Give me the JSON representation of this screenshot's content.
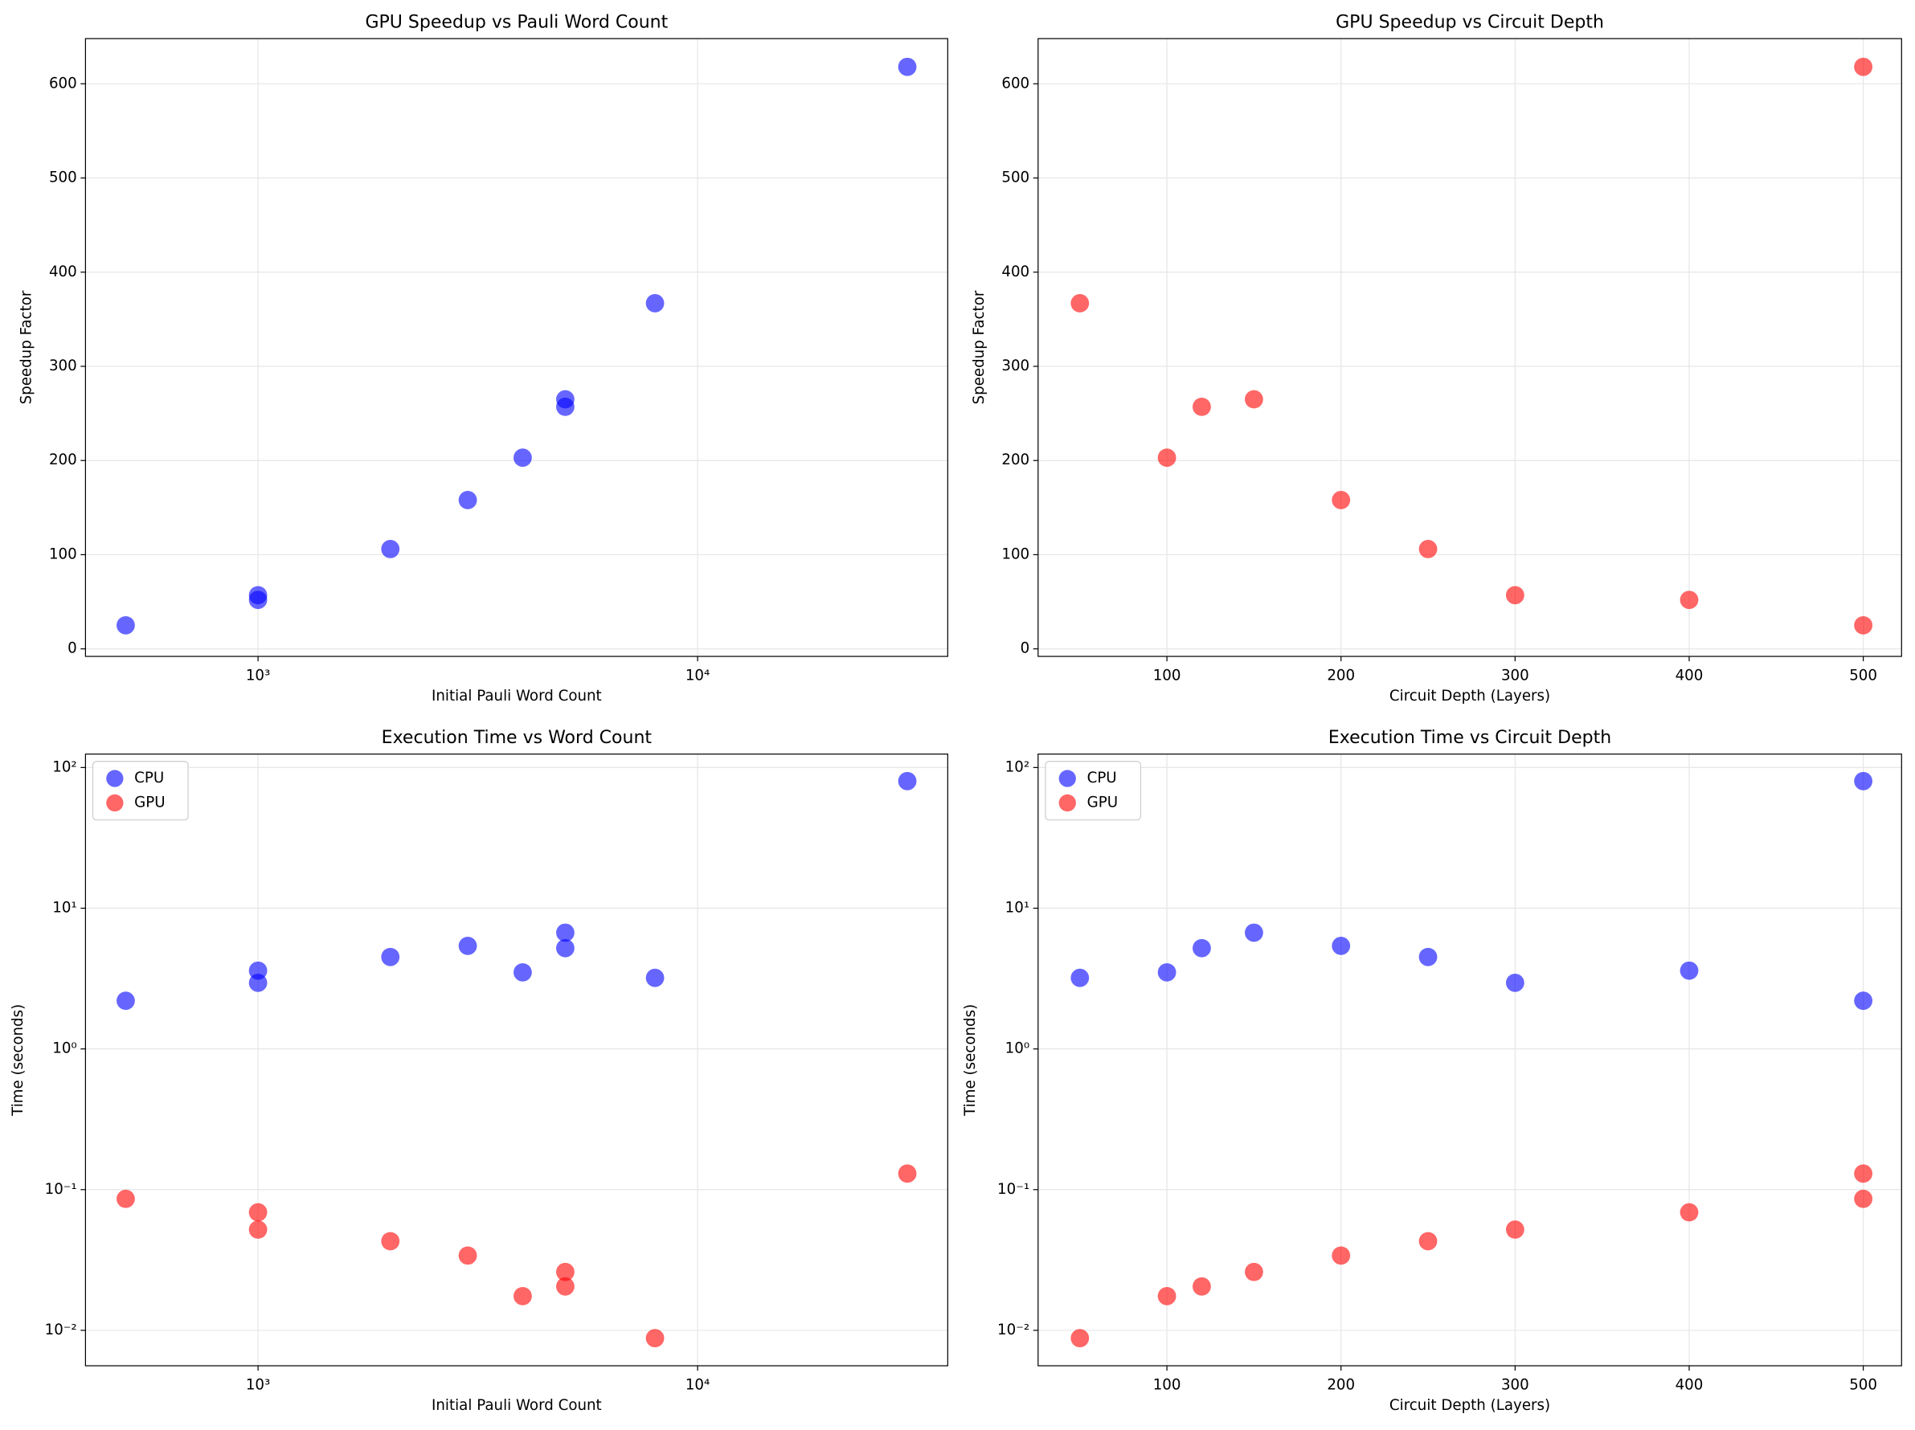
{
  "chart_data": [
    {
      "type": "scatter",
      "title": "GPU Speedup vs Pauli Word Count",
      "xlabel": "Initial Pauli Word Count",
      "ylabel": "Speedup Factor",
      "x": [
        8000,
        4000,
        5000,
        5000,
        3000,
        2000,
        1000,
        1000,
        500,
        30000
      ],
      "values": [
        367,
        203,
        257,
        265,
        158,
        106,
        57,
        52,
        25,
        618
      ],
      "color": "blue",
      "xscale": "log",
      "yscale": "linear",
      "xlim": [
        405,
        37070
      ],
      "ylim": [
        -8,
        648
      ],
      "xticks": [
        {
          "value": 1000,
          "label": "10³"
        },
        {
          "value": 10000,
          "label": "10⁴"
        }
      ],
      "yticks": [
        0,
        100,
        200,
        300,
        400,
        500,
        600
      ],
      "grid": true
    },
    {
      "type": "scatter",
      "title": "GPU Speedup vs Circuit Depth",
      "xlabel": "Circuit Depth (Layers)",
      "ylabel": "Speedup Factor",
      "x": [
        50,
        100,
        120,
        150,
        200,
        250,
        300,
        400,
        500,
        500
      ],
      "values": [
        367,
        203,
        257,
        265,
        158,
        106,
        57,
        52,
        25,
        618
      ],
      "color": "red",
      "xscale": "linear",
      "yscale": "linear",
      "xlim": [
        26,
        522
      ],
      "ylim": [
        -8,
        648
      ],
      "xticks": [
        100,
        200,
        300,
        400,
        500
      ],
      "yticks": [
        0,
        100,
        200,
        300,
        400,
        500,
        600
      ],
      "grid": true
    },
    {
      "type": "scatter",
      "title": "Execution Time vs Word Count",
      "xlabel": "Initial Pauli Word Count",
      "ylabel": "Time (seconds)",
      "x": [
        8000,
        4000,
        5000,
        5000,
        3000,
        2000,
        1000,
        1000,
        500,
        30000
      ],
      "series": [
        {
          "name": "CPU",
          "color": "blue",
          "values": [
            3.2,
            3.5,
            5.2,
            6.7,
            5.4,
            4.5,
            2.95,
            3.6,
            2.2,
            80
          ]
        },
        {
          "name": "GPU",
          "color": "red",
          "values": [
            0.0088,
            0.0175,
            0.0205,
            0.026,
            0.034,
            0.043,
            0.052,
            0.069,
            0.086,
            0.13
          ]
        }
      ],
      "xscale": "log",
      "yscale": "log",
      "xlim": [
        405,
        37070
      ],
      "ylim": [
        0.0056,
        124.6
      ],
      "xticks": [
        {
          "value": 1000,
          "label": "10³"
        },
        {
          "value": 10000,
          "label": "10⁴"
        }
      ],
      "yticks": [
        {
          "value": 0.01,
          "label": "10⁻²"
        },
        {
          "value": 0.1,
          "label": "10⁻¹"
        },
        {
          "value": 1,
          "label": "10⁰"
        },
        {
          "value": 10,
          "label": "10¹"
        },
        {
          "value": 100,
          "label": "10²"
        }
      ],
      "grid": true,
      "legend": "upper left"
    },
    {
      "type": "scatter",
      "title": "Execution Time vs Circuit Depth",
      "xlabel": "Circuit Depth (Layers)",
      "ylabel": "Time (seconds)",
      "x": [
        50,
        100,
        120,
        150,
        200,
        250,
        300,
        400,
        500,
        500
      ],
      "series": [
        {
          "name": "CPU",
          "color": "blue",
          "values": [
            3.2,
            3.5,
            5.2,
            6.7,
            5.4,
            4.5,
            2.95,
            3.6,
            2.2,
            80
          ]
        },
        {
          "name": "GPU",
          "color": "red",
          "values": [
            0.0088,
            0.0175,
            0.0205,
            0.026,
            0.034,
            0.043,
            0.052,
            0.069,
            0.086,
            0.13
          ]
        }
      ],
      "xscale": "linear",
      "yscale": "log",
      "xlim": [
        26,
        522
      ],
      "ylim": [
        0.0056,
        124.6
      ],
      "xticks": [
        100,
        200,
        300,
        400,
        500
      ],
      "yticks": [
        {
          "value": 0.01,
          "label": "10⁻²"
        },
        {
          "value": 0.1,
          "label": "10⁻¹"
        },
        {
          "value": 1,
          "label": "10⁰"
        },
        {
          "value": 10,
          "label": "10¹"
        },
        {
          "value": 100,
          "label": "10²"
        }
      ],
      "grid": true,
      "legend": "upper left"
    }
  ]
}
